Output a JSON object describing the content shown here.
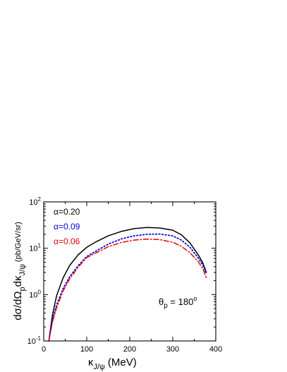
{
  "chart_data": {
    "type": "line",
    "xlabel": "κ",
    "xlabel_sub": "J/ψ",
    "xlabel_unit": "(MeV)",
    "ylabel": "dσ/dΩ",
    "ylabel_sub1": "p",
    "ylabel_mid": "dκ",
    "ylabel_sub2": "J/ψ",
    "ylabel_unit": "(pb/GeV/sr)",
    "xlim": [
      0,
      400
    ],
    "ylim": [
      0.1,
      100
    ],
    "yscale": "log",
    "xticks": [
      "0",
      "100",
      "200",
      "300",
      "400"
    ],
    "yticks": [
      {
        "base": "10",
        "exp": "-1",
        "value": 0.1
      },
      {
        "base": "10",
        "exp": "0",
        "value": 1
      },
      {
        "base": "10",
        "exp": "1",
        "value": 10
      },
      {
        "base": "10",
        "exp": "2",
        "value": 100
      }
    ],
    "annotation": {
      "symbol": "θ",
      "sub": "p",
      "text": " = 180",
      "sup": "o"
    },
    "legend_placement": "top-left",
    "series": [
      {
        "name": "α=0.20",
        "color": "#000000",
        "style": "solid",
        "x": [
          12,
          20,
          30,
          45,
          60,
          80,
          100,
          120,
          150,
          180,
          210,
          240,
          270,
          300,
          320,
          340,
          360,
          370,
          378
        ],
        "y": [
          0.1,
          0.35,
          0.95,
          2.3,
          4.2,
          7.2,
          10.5,
          13.5,
          18.5,
          23.0,
          26.5,
          28.0,
          27.3,
          24.5,
          19.5,
          13.0,
          7.0,
          4.8,
          3.0
        ]
      },
      {
        "name": "α=0.09",
        "color": "#0000dd",
        "style": "dotted",
        "x": [
          12,
          20,
          30,
          45,
          60,
          80,
          100,
          120,
          150,
          180,
          210,
          240,
          270,
          300,
          320,
          340,
          360,
          370,
          378
        ],
        "y": [
          0.1,
          0.28,
          0.6,
          1.35,
          2.4,
          4.2,
          6.6,
          8.5,
          12.3,
          15.8,
          18.5,
          20.0,
          20.2,
          18.5,
          15.0,
          10.5,
          6.0,
          4.3,
          2.8
        ]
      },
      {
        "name": "α=0.06",
        "color": "#ee0000",
        "style": "dashdot",
        "x": [
          12,
          20,
          30,
          45,
          60,
          80,
          100,
          120,
          150,
          180,
          210,
          240,
          270,
          300,
          320,
          340,
          360,
          370,
          378
        ],
        "y": [
          0.1,
          0.25,
          0.52,
          1.2,
          2.15,
          3.9,
          6.3,
          7.8,
          10.8,
          13.3,
          15.0,
          15.7,
          15.3,
          13.5,
          11.0,
          8.0,
          5.0,
          3.6,
          2.3
        ]
      }
    ]
  }
}
